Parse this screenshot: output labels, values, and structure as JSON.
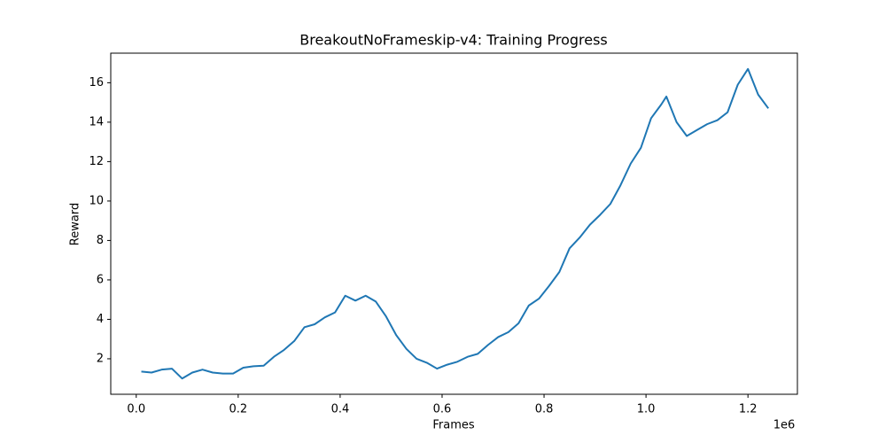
{
  "chart_data": {
    "type": "line",
    "title": "BreakoutNoFrameskip-v4: Training Progress",
    "x_label": "Frames",
    "y_label": "Reward",
    "x_offset_label": "1e6",
    "x": [
      10000,
      30000,
      50000,
      70000,
      90000,
      110000,
      130000,
      150000,
      170000,
      190000,
      210000,
      230000,
      250000,
      270000,
      290000,
      310000,
      330000,
      350000,
      370000,
      390000,
      410000,
      430000,
      450000,
      470000,
      490000,
      510000,
      530000,
      550000,
      570000,
      590000,
      610000,
      630000,
      650000,
      670000,
      690000,
      710000,
      730000,
      750000,
      770000,
      790000,
      810000,
      830000,
      850000,
      870000,
      890000,
      910000,
      930000,
      950000,
      970000,
      990000,
      1010000,
      1030000,
      1040000,
      1060000,
      1080000,
      1100000,
      1120000,
      1140000,
      1160000,
      1180000,
      1200000,
      1220000,
      1240000
    ],
    "series": [
      {
        "name": "Reward",
        "color": "#1f77b4",
        "values": [
          1.35,
          1.3,
          1.45,
          1.5,
          1.0,
          1.3,
          1.45,
          1.3,
          1.25,
          1.25,
          1.55,
          1.62,
          1.65,
          2.1,
          2.45,
          2.9,
          3.6,
          3.75,
          4.1,
          4.35,
          5.2,
          4.95,
          5.2,
          4.9,
          4.15,
          3.2,
          2.5,
          2.0,
          1.8,
          1.5,
          1.7,
          1.85,
          2.1,
          2.25,
          2.7,
          3.1,
          3.35,
          3.8,
          4.7,
          5.05,
          5.7,
          6.4,
          7.6,
          8.15,
          8.8,
          9.3,
          9.85,
          10.8,
          11.9,
          12.7,
          14.2,
          14.9,
          15.3,
          14.0,
          13.3,
          13.6,
          13.9,
          14.1,
          14.5,
          15.9,
          16.7,
          15.4,
          14.7
        ]
      }
    ],
    "xlim": [
      -50000,
      1297000
    ],
    "xticks": [
      {
        "value": 0,
        "label": "0.0"
      },
      {
        "value": 200000,
        "label": "0.2"
      },
      {
        "value": 400000,
        "label": "0.4"
      },
      {
        "value": 600000,
        "label": "0.6"
      },
      {
        "value": 800000,
        "label": "0.8"
      },
      {
        "value": 1000000,
        "label": "1.0"
      },
      {
        "value": 1200000,
        "label": "1.2"
      }
    ],
    "ylim": [
      0.2,
      17.5
    ],
    "yticks": [
      2,
      4,
      6,
      8,
      10,
      12,
      14,
      16
    ]
  }
}
